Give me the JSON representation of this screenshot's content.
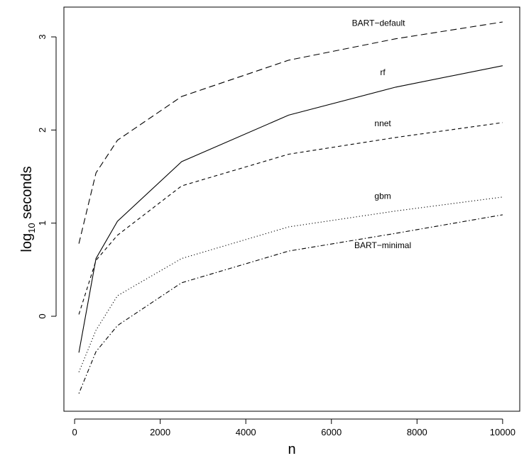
{
  "chart_data": {
    "type": "line",
    "title": "",
    "xlabel": "n",
    "ylabel": {
      "base": "log",
      "subscript": "10",
      "rest": " seconds"
    },
    "xlim": [
      -250,
      10400
    ],
    "ylim": [
      -1.02,
      3.32
    ],
    "xticks": [
      0,
      2000,
      4000,
      6000,
      8000,
      10000
    ],
    "yticks": [
      0,
      1,
      2,
      3
    ],
    "grid": false,
    "series": [
      {
        "name": "BART−default",
        "dash": "long-dash",
        "x": [
          100,
          500,
          1000,
          2500,
          5000,
          7500,
          10000
        ],
        "y": [
          0.78,
          1.54,
          1.89,
          2.36,
          2.75,
          2.98,
          3.16
        ],
        "label_x": 7100,
        "label_y": 3.12
      },
      {
        "name": "rf",
        "dash": "solid",
        "x": [
          100,
          500,
          1000,
          2500,
          5000,
          7500,
          10000
        ],
        "y": [
          -0.39,
          0.62,
          1.02,
          1.66,
          2.16,
          2.46,
          2.69
        ],
        "label_x": 7200,
        "label_y": 2.59
      },
      {
        "name": "nnet",
        "dash": "short-dash",
        "x": [
          100,
          500,
          1000,
          2500,
          5000,
          7500,
          10000
        ],
        "y": [
          0.02,
          0.6,
          0.87,
          1.4,
          1.74,
          1.92,
          2.08
        ],
        "label_x": 7200,
        "label_y": 2.04
      },
      {
        "name": "gbm",
        "dash": "dotted",
        "x": [
          100,
          500,
          1000,
          2500,
          5000,
          7500,
          10000
        ],
        "y": [
          -0.6,
          -0.15,
          0.22,
          0.62,
          0.96,
          1.13,
          1.28
        ],
        "label_x": 7200,
        "label_y": 1.26
      },
      {
        "name": "BART−minimal",
        "dash": "dot-dash",
        "x": [
          100,
          500,
          1000,
          2500,
          5000,
          7500,
          10000
        ],
        "y": [
          -0.83,
          -0.38,
          -0.1,
          0.36,
          0.7,
          0.89,
          1.09
        ],
        "label_x": 7200,
        "label_y": 0.73
      }
    ]
  }
}
